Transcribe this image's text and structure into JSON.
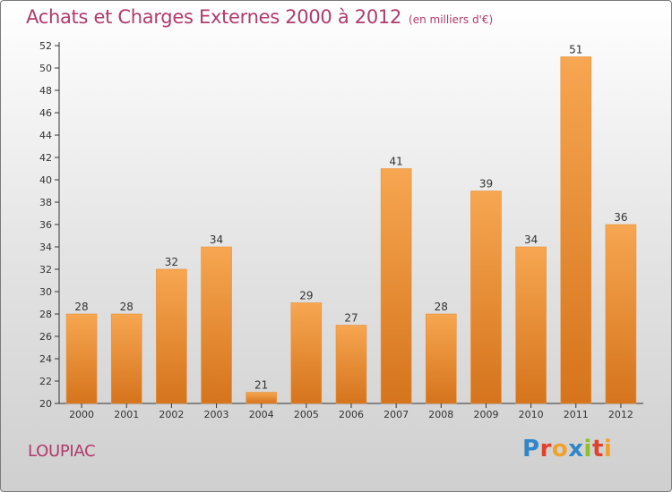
{
  "header": {
    "title": "Achats et Charges Externes 2000 à 2012",
    "unit": "(en milliers d'€)"
  },
  "footer": {
    "commune": "LOUPIAC",
    "logo_text": "Proxiti"
  },
  "colors": {
    "title": "#b03a6c",
    "bar_top": "#f7a651",
    "bar_bottom": "#d5741c",
    "axis": "#333333"
  },
  "chart_data": {
    "type": "bar",
    "title": "Achats et Charges Externes 2000 à 2012",
    "subtitle": "(en milliers d'€)",
    "xlabel": "",
    "ylabel": "",
    "categories": [
      "2000",
      "2001",
      "2002",
      "2003",
      "2004",
      "2005",
      "2006",
      "2007",
      "2008",
      "2009",
      "2010",
      "2011",
      "2012"
    ],
    "values": [
      28,
      28,
      32,
      34,
      21,
      29,
      27,
      41,
      28,
      39,
      34,
      51,
      36
    ],
    "ylim": [
      20,
      52
    ],
    "yticks": [
      20,
      22,
      24,
      26,
      28,
      30,
      32,
      34,
      36,
      38,
      40,
      42,
      44,
      46,
      48,
      50,
      52
    ],
    "grid": false,
    "data_labels": true
  }
}
